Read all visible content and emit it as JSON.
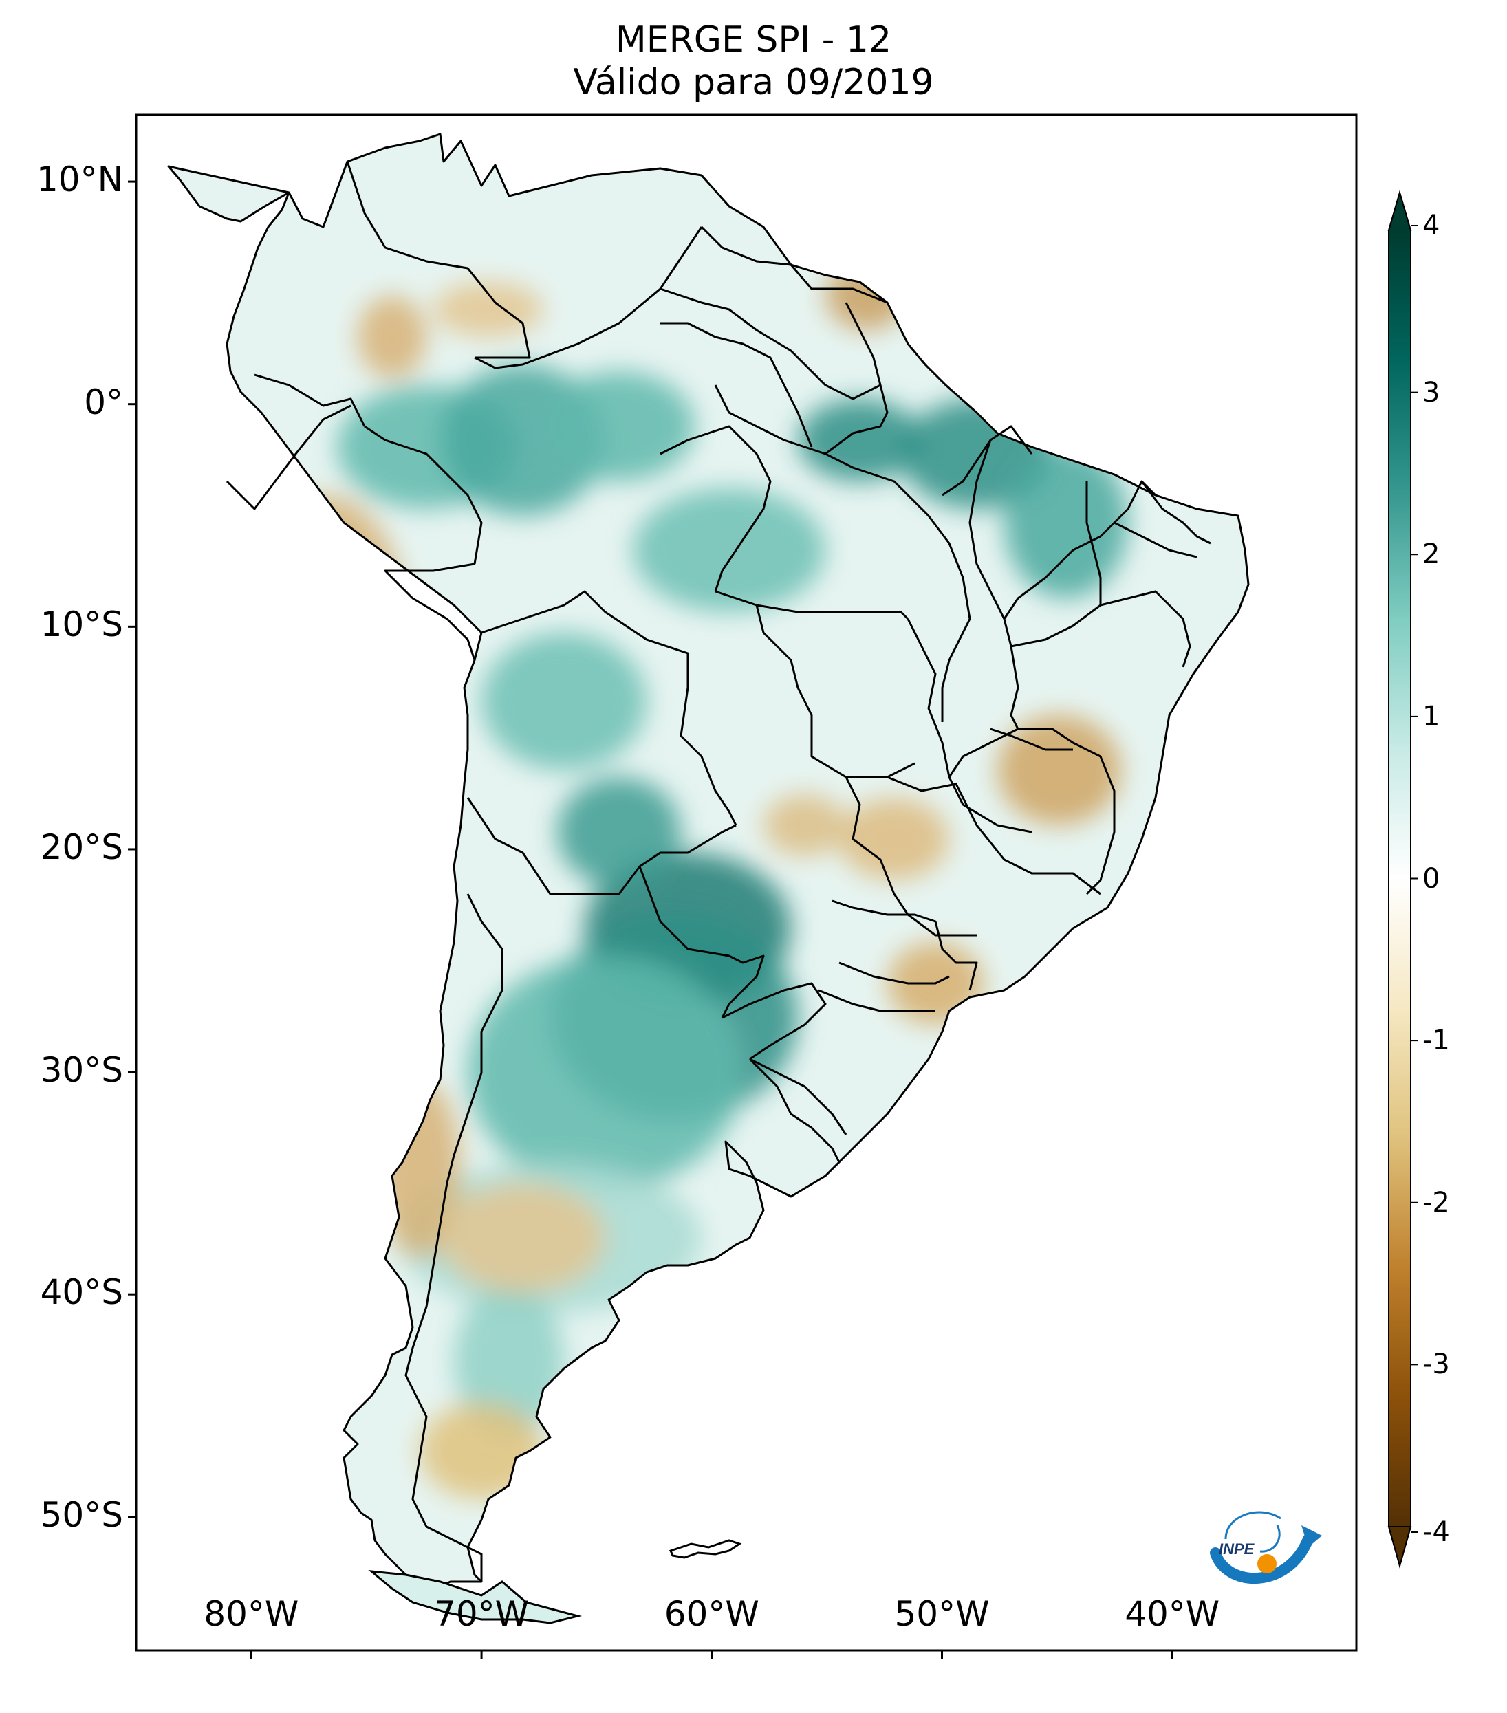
{
  "title": {
    "line1": "MERGE   SPI - 12",
    "line2": "Válido para 09/2019"
  },
  "map": {
    "extent": {
      "lon_min": -85,
      "lon_max": -32,
      "lat_min": -56,
      "lat_max": 13
    },
    "lat_ticks": [
      {
        "value": 10,
        "label": "10°N"
      },
      {
        "value": 0,
        "label": "0°"
      },
      {
        "value": -10,
        "label": "10°S"
      },
      {
        "value": -20,
        "label": "20°S"
      },
      {
        "value": -30,
        "label": "30°S"
      },
      {
        "value": -40,
        "label": "40°S"
      },
      {
        "value": -50,
        "label": "50°S"
      }
    ],
    "lon_ticks": [
      {
        "value": -80,
        "label": "80°W"
      },
      {
        "value": -70,
        "label": "70°W"
      },
      {
        "value": -60,
        "label": "60°W"
      },
      {
        "value": -50,
        "label": "50°W"
      },
      {
        "value": -40,
        "label": "40°W"
      }
    ]
  },
  "colorbar": {
    "min": -4,
    "max": 4,
    "ticks": [
      {
        "value": 4,
        "label": "4"
      },
      {
        "value": 3,
        "label": "3"
      },
      {
        "value": 2,
        "label": "2"
      },
      {
        "value": 1,
        "label": "1"
      },
      {
        "value": 0,
        "label": "0"
      },
      {
        "value": -1,
        "label": "-1"
      },
      {
        "value": -2,
        "label": "-2"
      },
      {
        "value": -3,
        "label": "-3"
      },
      {
        "value": -4,
        "label": "-4"
      }
    ],
    "colors": [
      "#543005",
      "#8c510a",
      "#bf812d",
      "#dfc27d",
      "#f6e8c3",
      "#ffffff",
      "#c7eae5",
      "#80cdc1",
      "#35978f",
      "#01665e",
      "#003c30"
    ]
  },
  "logo": {
    "text": "INPE"
  }
}
